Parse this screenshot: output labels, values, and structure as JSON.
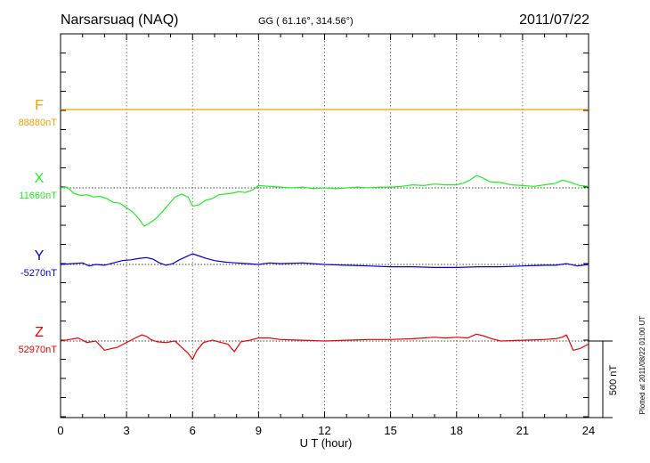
{
  "header": {
    "station": "Narsarsuaq (NAQ)",
    "coords": "GG ( 61.16°, 314.56°)",
    "date": "2011/07/22"
  },
  "footer": {
    "xlabel": "U T (hour)",
    "plotted": "Plotted at 2011/08/22 01:00 UT",
    "scale_label": "500 nT"
  },
  "chart_data": {
    "type": "line",
    "x_range": [
      0,
      24
    ],
    "x_ticks": [
      "0",
      "3",
      "6",
      "9",
      "12",
      "15",
      "18",
      "21",
      "24"
    ],
    "grid": true,
    "scale_bar_nT": 500,
    "series": [
      {
        "name": "F",
        "baseline_label": "88880nT",
        "color": "#f0a000",
        "x": [
          0,
          24
        ],
        "y": [
          0,
          0
        ]
      },
      {
        "name": "X",
        "baseline_label": "11660nT",
        "color": "#22ee22",
        "x": [
          0,
          0.3,
          0.6,
          0.9,
          1.2,
          1.5,
          1.8,
          2.1,
          2.4,
          2.7,
          3.0,
          3.3,
          3.6,
          3.8,
          4.0,
          4.3,
          4.6,
          4.9,
          5.2,
          5.5,
          5.8,
          6.0,
          6.3,
          6.6,
          6.9,
          7.2,
          7.5,
          7.8,
          8.1,
          8.4,
          8.7,
          9.0,
          9.5,
          10,
          10.5,
          11,
          11.5,
          12,
          12.5,
          13,
          13.5,
          14,
          14.5,
          15,
          15.5,
          16,
          16.5,
          17,
          17.5,
          18,
          18.3,
          18.6,
          18.9,
          19.2,
          19.5,
          20,
          20.5,
          21,
          21.5,
          22,
          22.5,
          22.8,
          23.0,
          23.3,
          23.6,
          24
        ],
        "y": [
          0,
          5,
          -35,
          -50,
          -45,
          -60,
          -55,
          -70,
          -95,
          -100,
          -130,
          -160,
          -210,
          -250,
          -235,
          -205,
          -160,
          -110,
          -60,
          -40,
          -60,
          -120,
          -110,
          -80,
          -70,
          -45,
          -40,
          -35,
          -25,
          -30,
          -15,
          15,
          10,
          5,
          0,
          5,
          -5,
          0,
          -5,
          0,
          5,
          0,
          5,
          5,
          10,
          20,
          15,
          25,
          20,
          20,
          30,
          50,
          80,
          65,
          40,
          35,
          20,
          15,
          10,
          20,
          30,
          50,
          45,
          30,
          15,
          10
        ]
      },
      {
        "name": "Y",
        "baseline_label": "-5270nT",
        "color": "#0000dd",
        "x": [
          0,
          0.5,
          1.0,
          1.3,
          1.6,
          2.0,
          2.4,
          2.8,
          3.2,
          3.6,
          3.9,
          4.2,
          4.5,
          4.8,
          5.1,
          5.4,
          5.7,
          6.0,
          6.3,
          6.6,
          7.0,
          7.5,
          8,
          8.5,
          9,
          9.5,
          10,
          11,
          12,
          13,
          14,
          15,
          16,
          17,
          18,
          19,
          20,
          21,
          22,
          22.5,
          23,
          23.5,
          24
        ],
        "y": [
          0,
          5,
          10,
          -10,
          0,
          -5,
          10,
          25,
          30,
          40,
          45,
          35,
          10,
          -5,
          5,
          30,
          50,
          70,
          55,
          40,
          25,
          15,
          10,
          5,
          0,
          10,
          5,
          10,
          0,
          -5,
          -10,
          -15,
          -15,
          -20,
          -20,
          -15,
          -15,
          -10,
          -5,
          -5,
          5,
          -10,
          0
        ]
      },
      {
        "name": "Z",
        "baseline_label": "52970nT",
        "color": "#ee0000",
        "x": [
          0,
          0.4,
          0.8,
          1.2,
          1.6,
          2.0,
          2.3,
          2.6,
          3.0,
          3.4,
          3.7,
          3.9,
          4.1,
          4.4,
          4.8,
          5.2,
          5.5,
          5.8,
          6.0,
          6.2,
          6.5,
          6.9,
          7.3,
          7.6,
          7.9,
          8.2,
          8.6,
          9,
          9.5,
          10,
          11,
          12,
          13,
          14,
          15,
          16,
          16.5,
          17,
          17.5,
          18,
          18.5,
          18.9,
          19.2,
          19.6,
          20,
          21,
          22,
          22.5,
          22.8,
          23.0,
          23.3,
          23.6,
          24
        ],
        "y": [
          0,
          10,
          20,
          -10,
          0,
          -60,
          -50,
          -40,
          -10,
          20,
          40,
          30,
          10,
          -5,
          -10,
          0,
          -40,
          -80,
          -120,
          -60,
          -10,
          5,
          -10,
          -20,
          -70,
          -5,
          5,
          20,
          20,
          10,
          5,
          0,
          5,
          10,
          10,
          15,
          20,
          25,
          20,
          25,
          20,
          45,
          35,
          15,
          0,
          5,
          10,
          15,
          25,
          40,
          -60,
          -50,
          -20
        ]
      }
    ]
  }
}
